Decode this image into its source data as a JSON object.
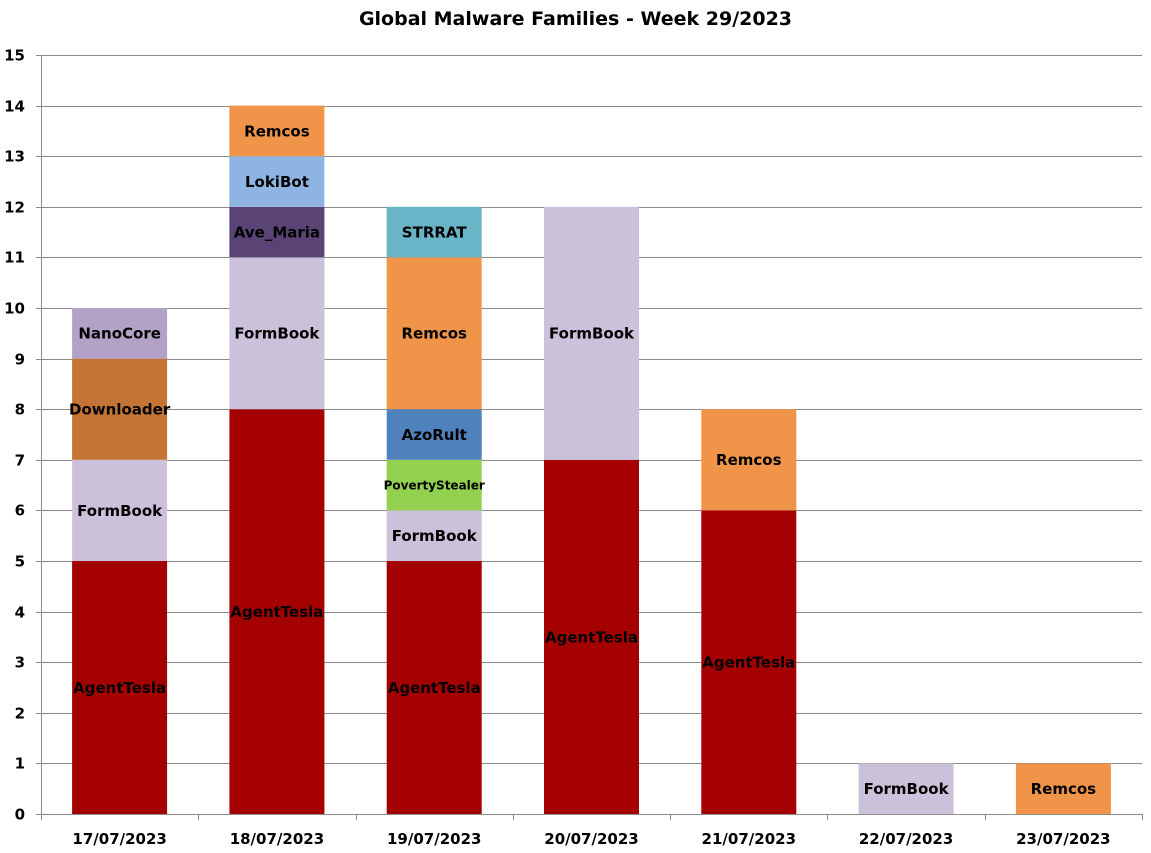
{
  "chart_data": {
    "type": "bar",
    "stacked": true,
    "title": "Global Malware Families - Week 29/2023",
    "xlabel": "",
    "ylabel": "",
    "ylim": [
      0,
      15
    ],
    "y_ticks": [
      0,
      1,
      2,
      3,
      4,
      5,
      6,
      7,
      8,
      9,
      10,
      11,
      12,
      13,
      14,
      15
    ],
    "grid": true,
    "legend": "none",
    "categories": [
      "17/07/2023",
      "18/07/2023",
      "19/07/2023",
      "20/07/2023",
      "21/07/2023",
      "22/07/2023",
      "23/07/2023"
    ],
    "colors": {
      "AgentTesla": "#a50000",
      "FormBook": "#ccc1da",
      "Downloader": "#c47535",
      "NanoCore": "#b2a2c7",
      "Ave_Maria": "#5a4476",
      "LokiBot": "#8eb4e3",
      "Remcos": "#f0944a",
      "PovertyStealer": "#92d050",
      "AzoRult": "#4f81bd",
      "STRRAT": "#6ab4c8"
    },
    "stacks": [
      [
        {
          "name": "AgentTesla",
          "value": 5
        },
        {
          "name": "FormBook",
          "value": 2
        },
        {
          "name": "Downloader",
          "value": 2
        },
        {
          "name": "NanoCore",
          "value": 1
        }
      ],
      [
        {
          "name": "AgentTesla",
          "value": 8
        },
        {
          "name": "FormBook",
          "value": 3
        },
        {
          "name": "Ave_Maria",
          "value": 1
        },
        {
          "name": "LokiBot",
          "value": 1
        },
        {
          "name": "Remcos",
          "value": 1
        }
      ],
      [
        {
          "name": "AgentTesla",
          "value": 5
        },
        {
          "name": "FormBook",
          "value": 1
        },
        {
          "name": "PovertyStealer",
          "value": 1
        },
        {
          "name": "AzoRult",
          "value": 1
        },
        {
          "name": "Remcos",
          "value": 3
        },
        {
          "name": "STRRAT",
          "value": 1
        }
      ],
      [
        {
          "name": "AgentTesla",
          "value": 7
        },
        {
          "name": "FormBook",
          "value": 5
        }
      ],
      [
        {
          "name": "AgentTesla",
          "value": 6
        },
        {
          "name": "Remcos",
          "value": 2
        }
      ],
      [
        {
          "name": "FormBook",
          "value": 1
        }
      ],
      [
        {
          "name": "Remcos",
          "value": 1
        }
      ]
    ]
  }
}
